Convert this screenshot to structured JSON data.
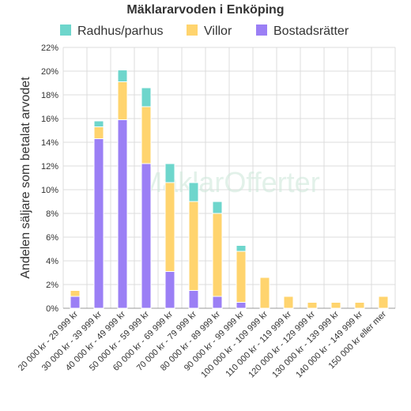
{
  "chart_data": {
    "type": "bar",
    "stacked": true,
    "title": "Mäklararvoden i Enköping",
    "ylabel": "Andelen säljare som betalat arvodet",
    "ylim": [
      0,
      22
    ],
    "yticks": [
      "0%",
      "2%",
      "4%",
      "6%",
      "8%",
      "10%",
      "12%",
      "14%",
      "16%",
      "18%",
      "20%",
      "22%"
    ],
    "grid": true,
    "legend_position": "top",
    "watermark": "MäklarOfferter",
    "categories": [
      "20 000 kr - 29 999 kr",
      "30 000 kr - 39 999 kr",
      "40 000 kr - 49 999 kr",
      "50 000 kr - 59 999 kr",
      "60 000 kr - 69 999 kr",
      "70 000 kr - 79 999 kr",
      "80 000 kr - 89 999 kr",
      "90 000 kr - 99 999 kr",
      "100 000 kr - 109 999 kr",
      "110 000 kr - 119 999 kr",
      "120 000 kr - 129 999 kr",
      "130 000 kr - 139 999 kr",
      "140 000 kr - 149 999 kr",
      "150 000 kr eller mer"
    ],
    "series": [
      {
        "name": "Bostadsrätter",
        "color": "#9b7ff5",
        "values": [
          1.0,
          14.3,
          15.9,
          12.2,
          3.1,
          1.5,
          1.0,
          0.5,
          0,
          0,
          0,
          0,
          0,
          0
        ]
      },
      {
        "name": "Villor",
        "color": "#ffd46e",
        "values": [
          0.5,
          1.0,
          3.2,
          4.8,
          7.5,
          7.5,
          7.0,
          4.3,
          2.6,
          1.0,
          0.5,
          0.5,
          0.5,
          1.0
        ]
      },
      {
        "name": "Radhus/parhus",
        "color": "#6ed6cc",
        "values": [
          0,
          0.5,
          1.0,
          1.6,
          1.6,
          1.6,
          1.0,
          0.5,
          0,
          0,
          0,
          0,
          0,
          0
        ]
      }
    ],
    "legend_order": [
      "Radhus/parhus",
      "Villor",
      "Bostadsrätter"
    ]
  }
}
